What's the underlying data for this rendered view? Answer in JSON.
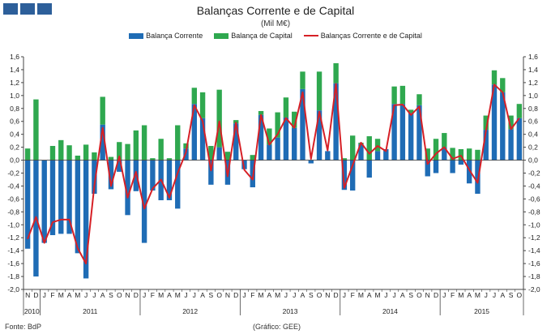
{
  "header": {
    "title": "Balanças Corrente e de Capital",
    "subtitle": "(Mil M€)"
  },
  "footer": {
    "source": "Fonte: BdP",
    "credit": "(Gráfico: GEE)"
  },
  "colors": {
    "brand": "#2d5f9a",
    "current": "#1f6cb5",
    "capital": "#2fa84f",
    "line": "#d62026",
    "axis": "#444444",
    "grid": "#999999"
  },
  "chart_data": {
    "type": "bar",
    "ylim": [
      -2.0,
      1.6
    ],
    "yticks": [
      "1,6",
      "1,4",
      "1,2",
      "1,0",
      "0,8",
      "0,6",
      "0,4",
      "0,2",
      "0,0",
      "-0,2",
      "-0,4",
      "-0,6",
      "-0,8",
      "-1,0",
      "-1,2",
      "-1,4",
      "-1,6",
      "-1,8",
      "-2,0"
    ],
    "grid": false,
    "legend_position": "top",
    "months": [
      "N",
      "D",
      "J",
      "F",
      "M",
      "A",
      "M",
      "J",
      "J",
      "A",
      "S",
      "O",
      "N",
      "D",
      "J",
      "F",
      "M",
      "A",
      "M",
      "J",
      "J",
      "A",
      "S",
      "O",
      "N",
      "D",
      "J",
      "F",
      "M",
      "A",
      "M",
      "J",
      "J",
      "A",
      "S",
      "O",
      "N",
      "D",
      "J",
      "F",
      "M",
      "A",
      "M",
      "J",
      "J",
      "A",
      "S",
      "O",
      "N",
      "D",
      "J",
      "F",
      "M",
      "A",
      "M",
      "J",
      "J",
      "A",
      "S",
      "O"
    ],
    "years": [
      {
        "label": "2010",
        "start": 0,
        "end": 1
      },
      {
        "label": "2011",
        "start": 2,
        "end": 13
      },
      {
        "label": "2012",
        "start": 14,
        "end": 25
      },
      {
        "label": "2013",
        "start": 26,
        "end": 37
      },
      {
        "label": "2014",
        "start": 38,
        "end": 49
      },
      {
        "label": "2015",
        "start": 50,
        "end": 59
      }
    ],
    "series": [
      {
        "name": "Balança Corrente",
        "kind": "bar",
        "values": [
          -1.37,
          -1.8,
          -1.28,
          -1.16,
          -1.14,
          -1.14,
          -1.44,
          -1.83,
          -0.52,
          0.55,
          -0.45,
          -0.18,
          -0.85,
          -0.48,
          -1.28,
          -0.47,
          -0.62,
          -0.62,
          -0.75,
          0.18,
          0.87,
          0.65,
          -0.38,
          0.2,
          -0.38,
          0.57,
          -0.14,
          -0.42,
          0.7,
          0.24,
          0.35,
          0.66,
          0.5,
          1.1,
          -0.05,
          0.77,
          0.14,
          1.19,
          -0.46,
          -0.47,
          0.25,
          -0.27,
          0.14,
          0.17,
          0.87,
          0.87,
          0.73,
          0.85,
          -0.25,
          -0.2,
          0.2,
          -0.2,
          -0.07,
          -0.36,
          -0.52,
          0.47,
          1.17,
          1.05,
          0.48,
          0.65
        ]
      },
      {
        "name": "Balança de Capital",
        "kind": "bar",
        "values": [
          0.18,
          0.94,
          0.0,
          0.22,
          0.31,
          0.23,
          0.07,
          0.24,
          0.12,
          0.43,
          0.05,
          0.28,
          0.25,
          0.46,
          0.54,
          0.03,
          0.33,
          0.03,
          0.54,
          0.08,
          0.25,
          0.4,
          0.22,
          0.89,
          0.13,
          0.05,
          0.0,
          0.08,
          0.06,
          0.25,
          0.39,
          0.31,
          0.25,
          0.27,
          0.0,
          0.6,
          0.0,
          0.31,
          0.03,
          0.38,
          0.02,
          0.37,
          0.19,
          0.0,
          0.27,
          0.28,
          0.05,
          0.17,
          0.18,
          0.33,
          0.22,
          0.19,
          0.17,
          0.18,
          0.16,
          0.22,
          0.22,
          0.22,
          0.21,
          0.22
        ]
      },
      {
        "name": "Balanças Corrente e de Capital",
        "kind": "line",
        "values": [
          -1.22,
          -0.88,
          -1.28,
          -0.96,
          -0.92,
          -0.92,
          -1.36,
          -1.6,
          -0.4,
          0.5,
          -0.4,
          0.06,
          -0.58,
          -0.18,
          -0.75,
          -0.44,
          -0.3,
          -0.58,
          -0.2,
          0.12,
          0.85,
          0.6,
          -0.16,
          0.6,
          -0.25,
          0.58,
          -0.15,
          -0.3,
          0.7,
          0.24,
          0.4,
          0.65,
          0.5,
          1.05,
          0.02,
          0.75,
          0.15,
          1.18,
          -0.43,
          -0.08,
          0.27,
          0.1,
          0.22,
          0.14,
          0.85,
          0.86,
          0.7,
          0.83,
          -0.06,
          0.1,
          0.2,
          0.02,
          0.07,
          -0.15,
          -0.35,
          0.45,
          1.17,
          1.05,
          0.48,
          0.65
        ]
      }
    ]
  }
}
